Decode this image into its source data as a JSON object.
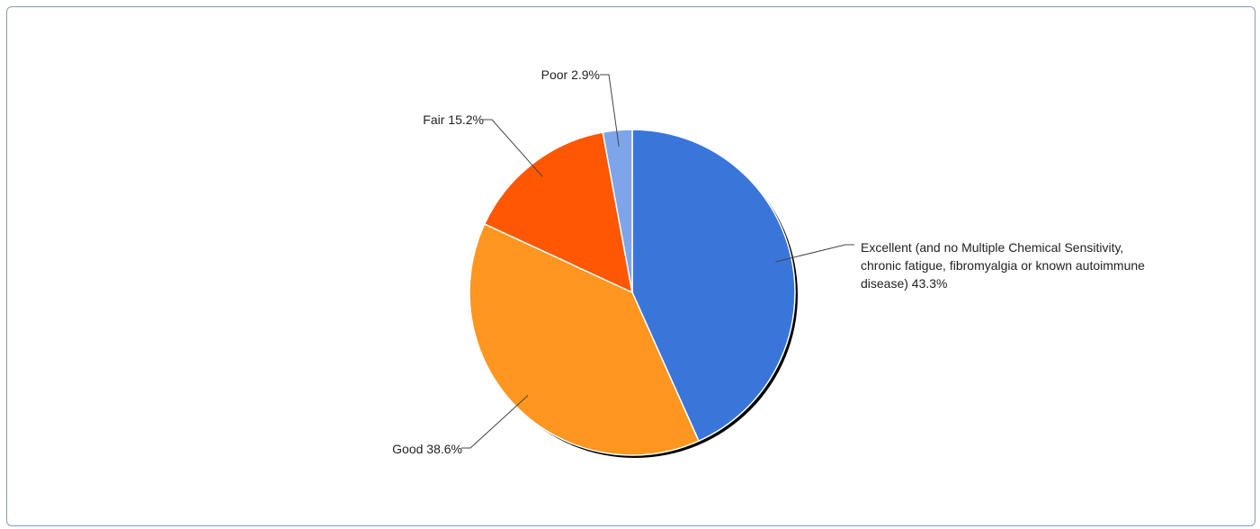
{
  "chart_data": {
    "type": "pie",
    "start_angle_deg": 0,
    "direction": "clockwise",
    "slices": [
      {
        "label_lines": [
          "Excellent (and no Multiple Chemical Sensitivity,",
          "chronic fatigue, fibromyalgia or known autoimmune",
          "disease) 43.3%"
        ],
        "value": 43.3,
        "color": "#3a76d9"
      },
      {
        "label_lines": [
          "Good 38.6%"
        ],
        "value": 38.6,
        "color": "#ff961f"
      },
      {
        "label_lines": [
          "Fair 15.2%"
        ],
        "value": 15.2,
        "color": "#ff5703"
      },
      {
        "label_lines": [
          "Poor 2.9%"
        ],
        "value": 2.9,
        "color": "#7ea5ea"
      }
    ],
    "legend": "none",
    "shadow": true
  }
}
